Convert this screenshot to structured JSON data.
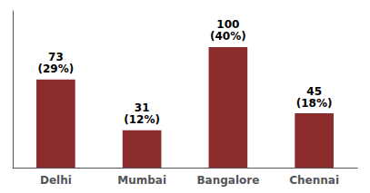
{
  "chart_data": {
    "type": "bar",
    "categories": [
      "Delhi",
      "Mumbai",
      "Bangalore",
      "Chennai"
    ],
    "values": [
      73,
      31,
      100,
      45
    ],
    "data_labels": true,
    "percentages": [
      {
        "value": 29,
        "label": "(29%)"
      },
      {
        "value": 12,
        "label": "(12%)"
      },
      {
        "value": 40,
        "label": "(40%)"
      },
      {
        "value": 18,
        "label": "(18%)"
      }
    ],
    "color": "#8B2B2B",
    "ylim": [
      0,
      130
    ],
    "grid": false,
    "tick_labels": "x"
  }
}
